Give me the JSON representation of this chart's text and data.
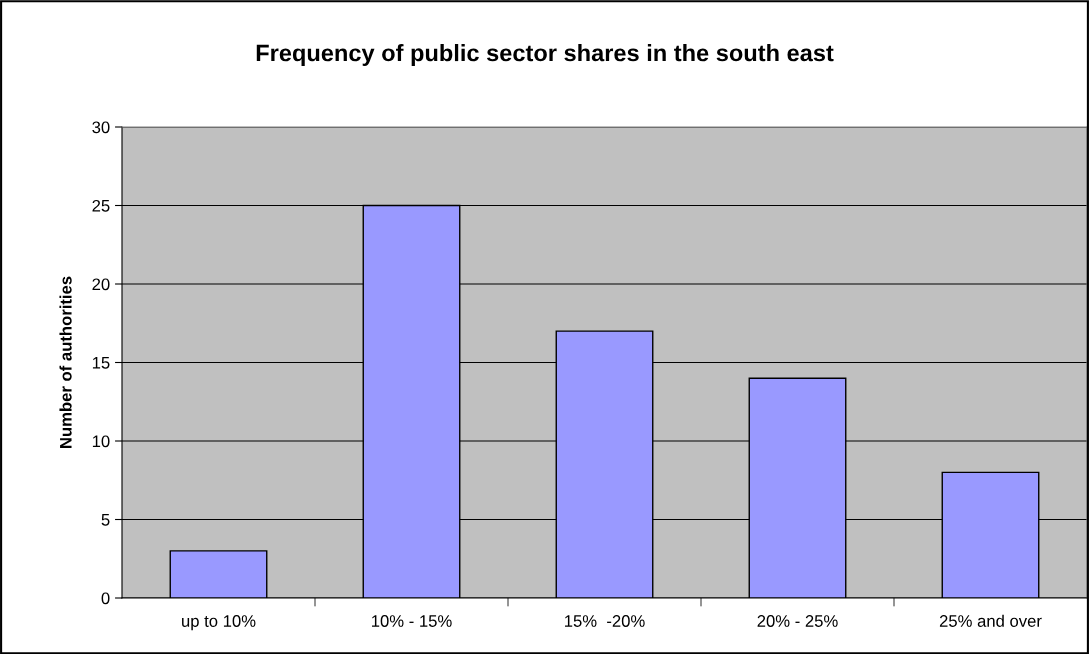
{
  "chart_data": {
    "type": "bar",
    "title": "Frequency of public sector shares in the south east",
    "ylabel": "Number of authorities",
    "categories": [
      "up to 10%",
      "10% - 15%",
      "15%  -20%",
      "20% - 25%",
      "25% and over"
    ],
    "values": [
      3,
      25,
      17,
      14,
      8
    ],
    "color": "#9999ff",
    "ylim": [
      0,
      30
    ],
    "yticks": [
      0,
      5,
      10,
      15,
      20,
      25,
      30
    ],
    "grid": "y"
  }
}
